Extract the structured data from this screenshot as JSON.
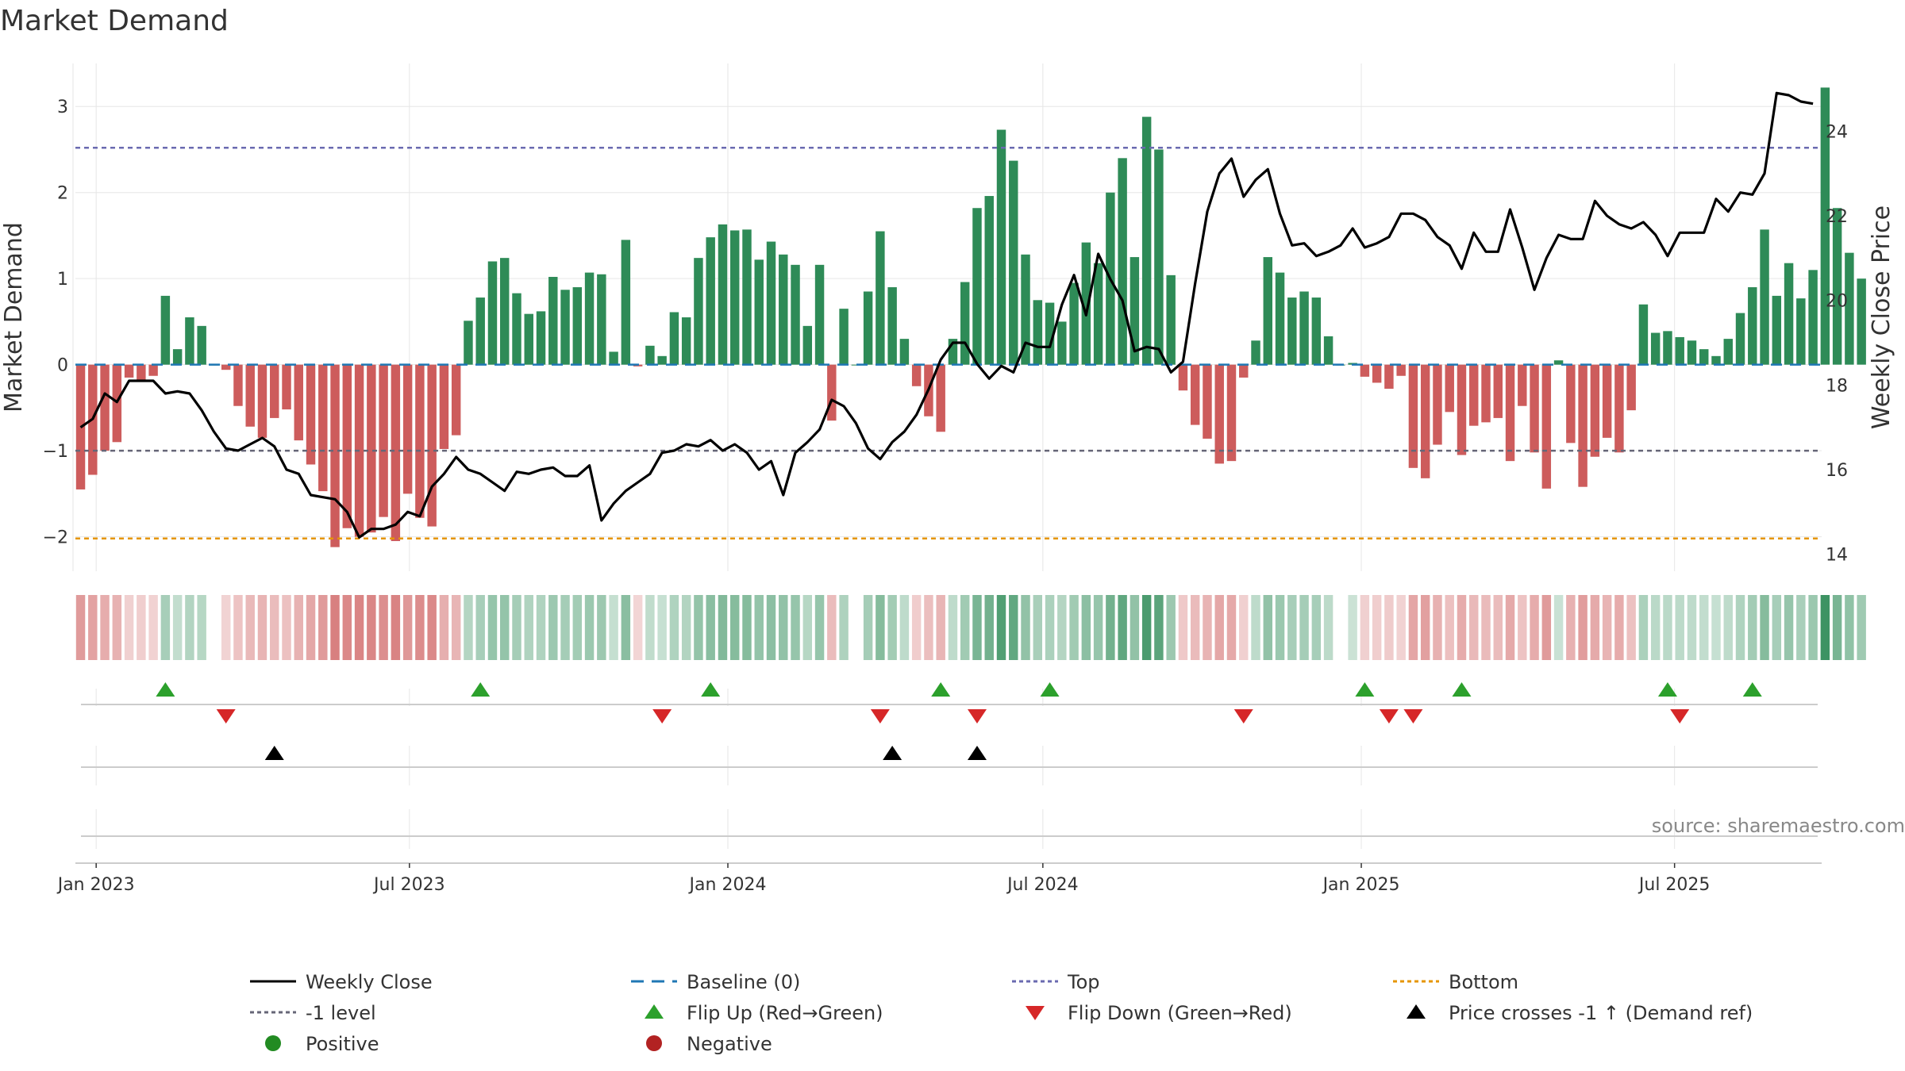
{
  "chart_data": {
    "type": "bar",
    "title": "Market Demand",
    "ylabel": "Market Demand",
    "y2label": "Weekly Close Price",
    "ylim": [
      -2.4,
      3.5
    ],
    "y2lim": [
      13.6,
      25.6
    ],
    "yticks": [
      -2,
      -1,
      0,
      1,
      2,
      3
    ],
    "y2ticks": [
      14,
      16,
      18,
      20,
      22,
      24
    ],
    "xlim": [
      "2022-12-20",
      "2025-09-24"
    ],
    "xticks": [
      {
        "date": "2023-01-01",
        "label": "Jan 2023"
      },
      {
        "date": "2023-07-01",
        "label": "Jul 2023"
      },
      {
        "date": "2024-01-01",
        "label": "Jan 2024"
      },
      {
        "date": "2024-07-01",
        "label": "Jul 2024"
      },
      {
        "date": "2025-01-01",
        "label": "Jan 2025"
      },
      {
        "date": "2025-07-01",
        "label": "Jul 2025"
      }
    ],
    "levels": {
      "top": 2.52,
      "minus_one": -1,
      "bottom": -2.02,
      "baseline": 0
    },
    "start_week": "2022-12-23",
    "demand": [
      -1.45,
      -1.28,
      -1.0,
      -0.9,
      -0.15,
      -0.2,
      -0.13,
      0.8,
      0.18,
      0.55,
      0.45,
      0,
      -0.06,
      -0.48,
      -0.72,
      -0.85,
      -0.62,
      -0.52,
      -0.88,
      -1.16,
      -1.47,
      -2.12,
      -1.9,
      -2.0,
      -1.95,
      -1.77,
      -2.05,
      -1.5,
      -1.78,
      -1.88,
      -0.98,
      -0.82,
      0.51,
      0.78,
      1.2,
      1.24,
      0.83,
      0.59,
      0.62,
      1.02,
      0.87,
      0.9,
      1.07,
      1.05,
      0.15,
      1.45,
      -0.02,
      0.22,
      0.1,
      0.61,
      0.55,
      1.24,
      1.48,
      1.63,
      1.56,
      1.57,
      1.22,
      1.43,
      1.28,
      1.16,
      0.45,
      1.16,
      -0.65,
      0.65,
      0,
      0.85,
      1.55,
      0.9,
      0.3,
      -0.25,
      -0.6,
      -0.78,
      0.3,
      0.96,
      1.82,
      1.96,
      2.73,
      2.37,
      1.28,
      0.75,
      0.72,
      0.5,
      0.95,
      1.42,
      1.18,
      2.0,
      2.4,
      1.25,
      2.88,
      2.5,
      1.04,
      -0.3,
      -0.7,
      -0.86,
      -1.15,
      -1.12,
      -0.15,
      0.28,
      1.25,
      1.07,
      0.78,
      0.85,
      0.78,
      0.33,
      0,
      0.02,
      -0.14,
      -0.21,
      -0.28,
      -0.13,
      -1.2,
      -1.32,
      -0.93,
      -0.55,
      -1.05,
      -0.71,
      -0.67,
      -0.62,
      -1.12,
      -0.48,
      -1.02,
      -1.44,
      0.05,
      -0.91,
      -1.42,
      -1.07,
      -0.85,
      -1.02,
      -0.53,
      0.7,
      0.37,
      0.39,
      0.32,
      0.28,
      0.18,
      0.1,
      0.3,
      0.6,
      0.9,
      1.57,
      0.8,
      1.18,
      0.77,
      1.1,
      3.22,
      1.82,
      1.3,
      1.0
    ],
    "weekly_close": [
      17.0,
      17.2,
      17.8,
      17.6,
      18.1,
      18.1,
      18.1,
      17.8,
      17.85,
      17.8,
      17.4,
      16.9,
      16.5,
      16.45,
      16.6,
      16.75,
      16.55,
      16.0,
      15.9,
      15.4,
      15.35,
      15.3,
      15.0,
      14.4,
      14.6,
      14.6,
      14.7,
      15.0,
      14.9,
      15.6,
      15.9,
      16.3,
      16.0,
      15.9,
      15.7,
      15.5,
      15.95,
      15.9,
      16.0,
      16.05,
      15.85,
      15.85,
      16.1,
      14.8,
      15.2,
      15.5,
      15.7,
      15.9,
      16.4,
      16.45,
      16.6,
      16.55,
      16.7,
      16.45,
      16.6,
      16.4,
      16.0,
      16.2,
      15.4,
      16.4,
      16.65,
      16.95,
      17.65,
      17.5,
      17.1,
      16.5,
      16.25,
      16.65,
      16.9,
      17.3,
      17.9,
      18.6,
      19.0,
      19.0,
      18.5,
      18.15,
      18.45,
      18.3,
      19.0,
      18.9,
      18.9,
      19.9,
      20.6,
      19.65,
      21.1,
      20.5,
      20.0,
      18.8,
      18.9,
      18.85,
      18.3,
      18.55,
      20.4,
      22.1,
      23.0,
      23.35,
      22.45,
      22.85,
      23.1,
      22.05,
      21.3,
      21.35,
      21.05,
      21.15,
      21.3,
      21.7,
      21.25,
      21.35,
      21.5,
      22.05,
      22.05,
      21.9,
      21.5,
      21.3,
      20.75,
      21.6,
      21.15,
      21.15,
      22.15,
      21.25,
      20.25,
      21.0,
      21.55,
      21.45,
      21.45,
      22.35,
      22.0,
      21.8,
      21.7,
      21.85,
      21.55,
      21.05,
      21.6,
      21.6,
      21.6,
      22.4,
      22.1,
      22.55,
      22.5,
      23.0,
      24.9,
      24.85,
      24.7,
      24.65
    ],
    "flip_up_weeks": [
      7,
      33,
      52,
      71,
      80,
      106,
      114,
      131,
      138
    ],
    "flip_down_weeks": [
      12,
      48,
      66,
      74,
      96,
      108,
      110,
      132
    ],
    "price_cross_weeks": [
      16,
      67,
      74
    ],
    "legend": [
      {
        "key": "weekly_close",
        "label": "Weekly Close"
      },
      {
        "key": "baseline",
        "label": "Baseline (0)"
      },
      {
        "key": "top",
        "label": "Top"
      },
      {
        "key": "bottom",
        "label": "Bottom"
      },
      {
        "key": "minus_one",
        "label": "-1 level"
      },
      {
        "key": "flip_up",
        "label": "Flip Up (Red→Green)"
      },
      {
        "key": "flip_down",
        "label": "Flip Down (Green→Red)"
      },
      {
        "key": "price_cross",
        "label": "Price crosses -1 ↑ (Demand ref)"
      },
      {
        "key": "positive",
        "label": "Positive"
      },
      {
        "key": "negative",
        "label": "Negative"
      }
    ],
    "source": "source: sharemaestro.com"
  },
  "colors": {
    "positive": "#2e8b57",
    "negative": "#cd5c5c",
    "line": "#000000",
    "baseline": "#1f77b4",
    "top": "#6a6ab0",
    "bottom": "#e69500",
    "minus_one": "#666677",
    "flip_up": "#2ca02c",
    "flip_down": "#d62728",
    "price_cross": "#000000",
    "positive_dot": "#228b22",
    "negative_dot": "#b22222",
    "grid": "#e6e6e6",
    "axis": "#cccccc"
  }
}
